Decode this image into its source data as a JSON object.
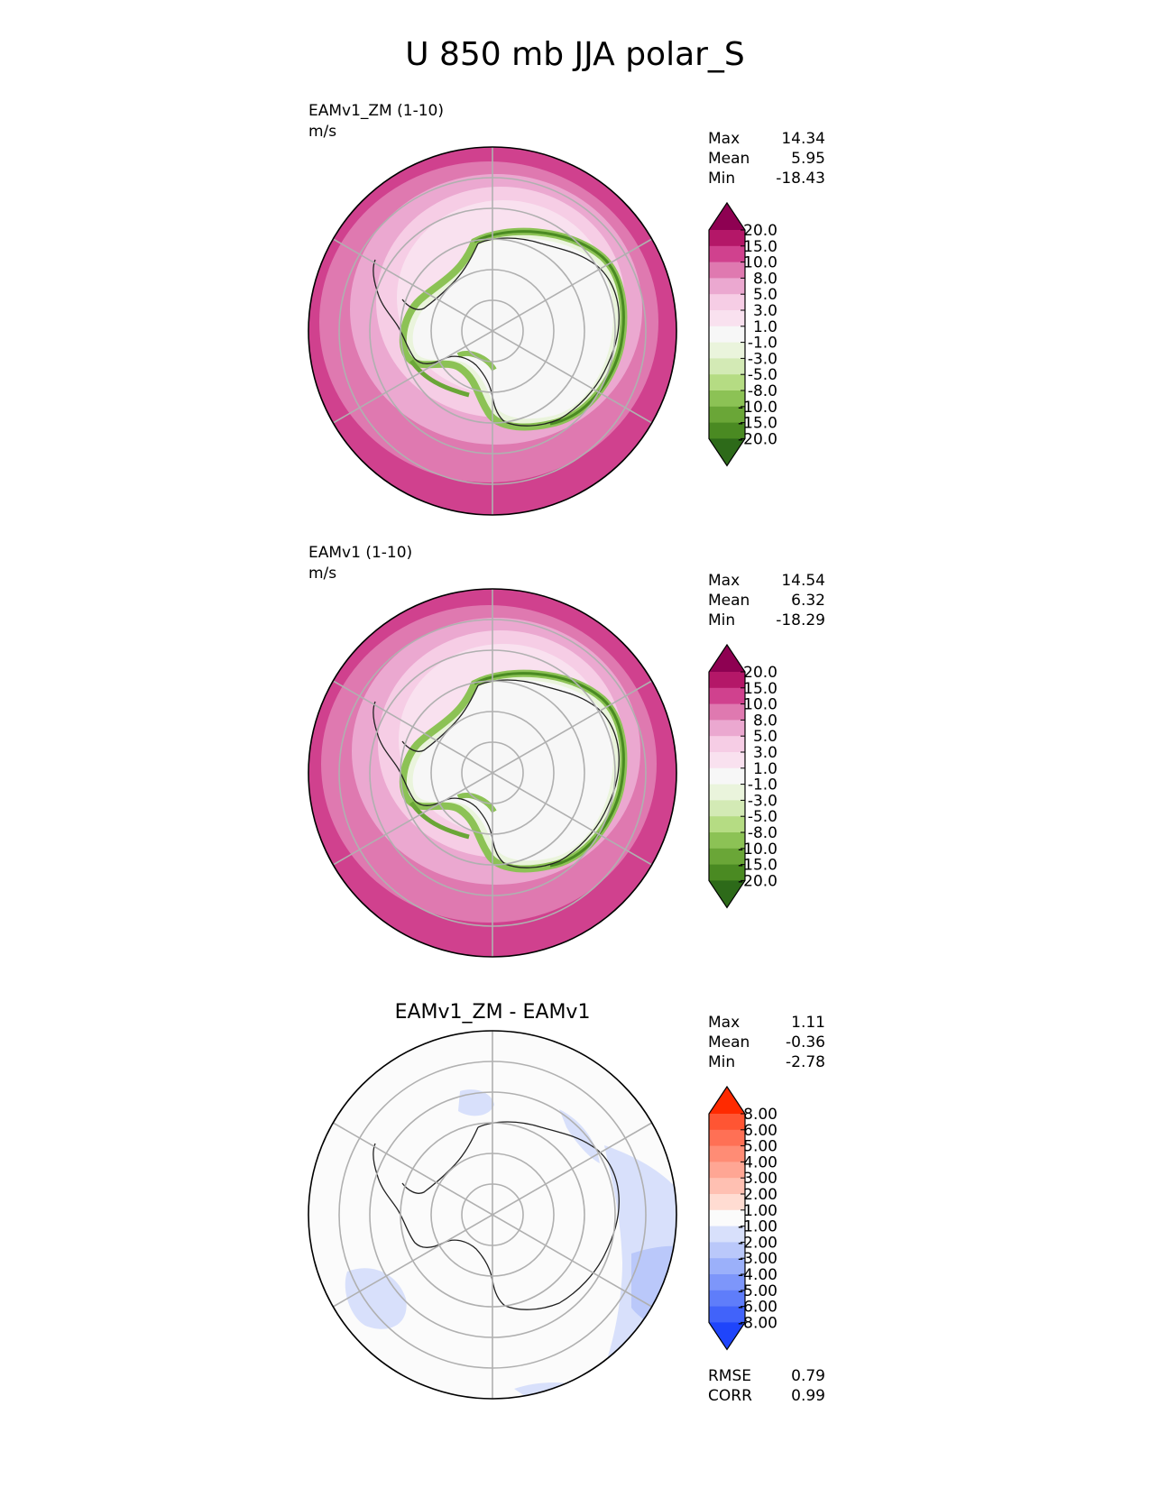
{
  "title": "U 850 mb JJA polar_S",
  "panels": [
    {
      "name": "EAMv1_ZM (1-10)",
      "units": "m/s",
      "title": "",
      "stats": [
        {
          "label": "Max",
          "value": "14.34"
        },
        {
          "label": "Mean",
          "value": "5.95"
        },
        {
          "label": "Min",
          "value": "-18.43"
        }
      ],
      "colorbar": {
        "levels": [
          "20.0",
          "15.0",
          "10.0",
          "8.0",
          "5.0",
          "3.0",
          "1.0",
          "-1.0",
          "-3.0",
          "-5.0",
          "-8.0",
          "-10.0",
          "-15.0",
          "-20.0"
        ],
        "colors": [
          "#8e0152",
          "#b41768",
          "#d0418e",
          "#df79b0",
          "#eba8d0",
          "#f6cde5",
          "#f9e1ef",
          "#f7f7f7",
          "#eaf4dc",
          "#d3eab5",
          "#b5dc83",
          "#8cc255",
          "#6aa637",
          "#4a8a22",
          "#2d6a19"
        ]
      },
      "footer": []
    },
    {
      "name": "EAMv1 (1-10)",
      "units": "m/s",
      "title": "",
      "stats": [
        {
          "label": "Max",
          "value": "14.54"
        },
        {
          "label": "Mean",
          "value": "6.32"
        },
        {
          "label": "Min",
          "value": "-18.29"
        }
      ],
      "colorbar": {
        "levels": [
          "20.0",
          "15.0",
          "10.0",
          "8.0",
          "5.0",
          "3.0",
          "1.0",
          "-1.0",
          "-3.0",
          "-5.0",
          "-8.0",
          "-10.0",
          "-15.0",
          "-20.0"
        ],
        "colors": [
          "#8e0152",
          "#b41768",
          "#d0418e",
          "#df79b0",
          "#eba8d0",
          "#f6cde5",
          "#f9e1ef",
          "#f7f7f7",
          "#eaf4dc",
          "#d3eab5",
          "#b5dc83",
          "#8cc255",
          "#6aa637",
          "#4a8a22",
          "#2d6a19"
        ]
      },
      "footer": []
    },
    {
      "name": "",
      "units": "",
      "title": "EAMv1_ZM - EAMv1",
      "stats": [
        {
          "label": "Max",
          "value": "1.11"
        },
        {
          "label": "Mean",
          "value": "-0.36"
        },
        {
          "label": "Min",
          "value": "-2.78"
        }
      ],
      "colorbar": {
        "levels": [
          "8.00",
          "6.00",
          "5.00",
          "4.00",
          "3.00",
          "2.00",
          "1.00",
          "-1.00",
          "-2.00",
          "-3.00",
          "-4.00",
          "-5.00",
          "-6.00",
          "-8.00"
        ],
        "colors": [
          "#ff2a00",
          "#ff5533",
          "#ff7055",
          "#ff8c75",
          "#ffa694",
          "#ffc0b2",
          "#ffdcd2",
          "#fbfbfb",
          "#d8e0fb",
          "#bac8fa",
          "#9bb0fa",
          "#7d96fa",
          "#5f7dfa",
          "#4163fa",
          "#1f45fb"
        ]
      },
      "footer": [
        {
          "label": "RMSE",
          "value": "0.79"
        },
        {
          "label": "CORR",
          "value": "0.99"
        }
      ]
    }
  ],
  "chart_data": [
    {
      "type": "heatmap",
      "title": "EAMv1_ZM (1-10)",
      "projection": "south polar stereographic",
      "units": "m/s",
      "max": 14.34,
      "mean": 5.95,
      "min": -18.43,
      "contour_levels": [
        -20,
        -15,
        -10,
        -8,
        -5,
        -3,
        -1,
        1,
        3,
        5,
        8,
        10,
        15,
        20
      ]
    },
    {
      "type": "heatmap",
      "title": "EAMv1 (1-10)",
      "projection": "south polar stereographic",
      "units": "m/s",
      "max": 14.54,
      "mean": 6.32,
      "min": -18.29,
      "contour_levels": [
        -20,
        -15,
        -10,
        -8,
        -5,
        -3,
        -1,
        1,
        3,
        5,
        8,
        10,
        15,
        20
      ]
    },
    {
      "type": "heatmap",
      "title": "EAMv1_ZM - EAMv1",
      "projection": "south polar stereographic",
      "max": 1.11,
      "mean": -0.36,
      "min": -2.78,
      "rmse": 0.79,
      "corr": 0.99,
      "contour_levels": [
        -8,
        -6,
        -5,
        -4,
        -3,
        -2,
        -1,
        1,
        2,
        3,
        4,
        5,
        6,
        8
      ]
    }
  ]
}
